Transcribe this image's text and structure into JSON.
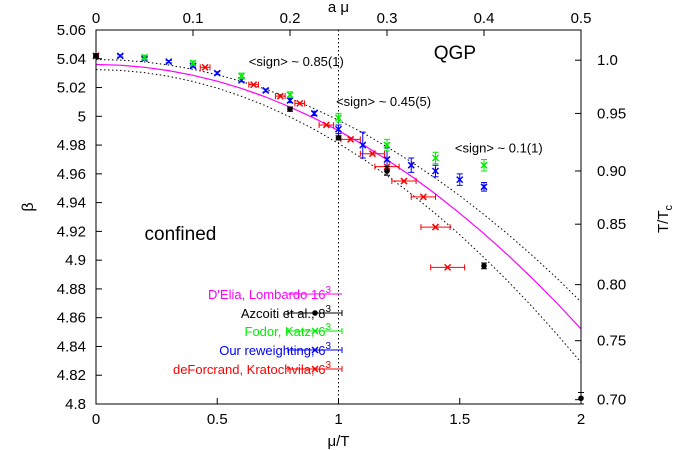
{
  "chart_data": {
    "type": "scatter",
    "xlabel": "μ/T",
    "ylabel": "β",
    "top_xlabel": "a μ",
    "right_ylabel_main": "T/T",
    "right_ylabel_sub": "c",
    "xlim": [
      0,
      2
    ],
    "ylim": [
      4.8,
      5.06
    ],
    "top_xlim": [
      0,
      0.5
    ],
    "xticks": [
      "0",
      "0.5",
      "1",
      "1.5",
      "2"
    ],
    "yticks": [
      "4.8",
      "4.82",
      "4.84",
      "4.86",
      "4.88",
      "4.9",
      "4.92",
      "4.94",
      "4.96",
      "4.98",
      "5",
      "5.02",
      "5.04",
      "5.06"
    ],
    "top_xticks": [
      "0",
      "0.1",
      "0.2",
      "0.3",
      "0.4",
      "0.5"
    ],
    "right_yticks": [
      {
        "label": "0.70",
        "beta": 4.803
      },
      {
        "label": "0.75",
        "beta": 4.844
      },
      {
        "label": "0.80",
        "beta": 4.883
      },
      {
        "label": "0.85",
        "beta": 4.925
      },
      {
        "label": "0.90",
        "beta": 4.962
      },
      {
        "label": "0.95",
        "beta": 5.002
      },
      {
        "label": "1.0",
        "beta": 5.039
      }
    ],
    "vline_x": 1,
    "annotations": [
      {
        "text": "QGP",
        "x": 1.48,
        "y": 5.04,
        "size": 19,
        "anchor": "middle"
      },
      {
        "text": "confined",
        "x": 0.2,
        "y": 4.914,
        "size": 19,
        "anchor": "start"
      },
      {
        "text": "<sign> ~ 0.85(1)",
        "x": 0.63,
        "y": 5.035,
        "size": 13,
        "anchor": "start"
      },
      {
        "text": "<sign> ~ 0.45(5)",
        "x": 0.99,
        "y": 5.007,
        "size": 13,
        "anchor": "start"
      },
      {
        "text": "<sign> ~ 0.1(1)",
        "x": 1.48,
        "y": 4.975,
        "size": 13,
        "anchor": "start"
      }
    ],
    "series": [
      {
        "name": "D'Elia, Lombardo 16",
        "sup": "3",
        "color": "#ff00ff",
        "kind": "curve",
        "x": [
          0,
          0.1,
          0.2,
          0.3,
          0.4,
          0.5,
          0.6,
          0.7,
          0.8,
          0.9,
          1.0,
          1.1,
          1.2,
          1.3,
          1.4,
          1.5,
          1.6,
          1.7,
          1.8,
          1.9,
          2.0
        ],
        "y": [
          5.036,
          5.0355,
          5.0341,
          5.0318,
          5.0285,
          5.0244,
          5.0194,
          5.0134,
          5.0065,
          4.9987,
          4.99,
          4.9804,
          4.9698,
          4.9584,
          4.946,
          4.9326,
          4.9184,
          4.9033,
          4.8872,
          4.8702,
          4.8522
        ],
        "upper": [
          5.0395,
          5.0391,
          5.0378,
          5.0357,
          5.0327,
          5.0289,
          5.0243,
          5.0188,
          5.0125,
          5.0053,
          4.9973,
          4.9885,
          4.9788,
          4.9683,
          4.957,
          4.9448,
          4.9317,
          4.9178,
          4.9031,
          4.8875,
          4.871
        ],
        "lower": [
          5.0325,
          5.0319,
          5.0304,
          5.0278,
          5.0242,
          5.0196,
          5.0139,
          5.0073,
          4.9996,
          4.9909,
          4.9812,
          4.9705,
          4.9588,
          4.946,
          4.9323,
          4.9176,
          4.9018,
          4.8851,
          4.8674,
          4.8486,
          4.8289
        ]
      },
      {
        "name": "Azcoiti et al., 8",
        "sup": "3",
        "color": "#000000",
        "marker": "dot",
        "points": [
          {
            "x": 0,
            "y": 5.042,
            "yerr": 0.0015
          },
          {
            "x": 0.8,
            "y": 5.005,
            "yerr": 0.0015
          },
          {
            "x": 1.0,
            "y": 4.985,
            "yerr": 0.0015
          },
          {
            "x": 1.2,
            "y": 4.962,
            "yerr": 0.003
          },
          {
            "x": 1.6,
            "y": 4.896,
            "yerr": 0.002
          },
          {
            "x": 2.0,
            "y": 4.804,
            "yerr": 0.004
          }
        ]
      },
      {
        "name": "Fodor, Katz, 6",
        "sup": "3",
        "color": "#00ee00",
        "marker": "x",
        "points": [
          {
            "x": 0,
            "y": 5.042,
            "yerr": 0.001
          },
          {
            "x": 0.2,
            "y": 5.041,
            "yerr": 0.0015
          },
          {
            "x": 0.4,
            "y": 5.037,
            "yerr": 0.0015
          },
          {
            "x": 0.6,
            "y": 5.028,
            "yerr": 0.002
          },
          {
            "x": 0.8,
            "y": 5.015,
            "yerr": 0.002
          },
          {
            "x": 1.0,
            "y": 4.999,
            "yerr": 0.003
          },
          {
            "x": 1.2,
            "y": 4.98,
            "yerr": 0.004
          },
          {
            "x": 1.4,
            "y": 4.971,
            "yerr": 0.004
          },
          {
            "x": 1.6,
            "y": 4.966,
            "yerr": 0.004
          }
        ]
      },
      {
        "name": "Our reweighting, 6",
        "sup": "3",
        "color": "#0000ff",
        "marker": "x",
        "points": [
          {
            "x": 0,
            "y": 5.042,
            "yerr": 0.0008
          },
          {
            "x": 0.1,
            "y": 5.042,
            "yerr": 0.0008
          },
          {
            "x": 0.2,
            "y": 5.04,
            "yerr": 0.0008
          },
          {
            "x": 0.3,
            "y": 5.038,
            "yerr": 0.0008
          },
          {
            "x": 0.4,
            "y": 5.035,
            "yerr": 0.0008
          },
          {
            "x": 0.5,
            "y": 5.03,
            "yerr": 0.001
          },
          {
            "x": 0.6,
            "y": 5.025,
            "yerr": 0.001
          },
          {
            "x": 0.7,
            "y": 5.018,
            "yerr": 0.001
          },
          {
            "x": 0.8,
            "y": 5.011,
            "yerr": 0.0015
          },
          {
            "x": 0.9,
            "y": 5.002,
            "yerr": 0.0015
          },
          {
            "x": 1.0,
            "y": 4.991,
            "yerr": 0.003
          },
          {
            "x": 1.1,
            "y": 4.98,
            "yerr": 0.009
          },
          {
            "x": 1.2,
            "y": 4.97,
            "yerr": 0.008
          },
          {
            "x": 1.3,
            "y": 4.966,
            "yerr": 0.005
          },
          {
            "x": 1.4,
            "y": 4.962,
            "yerr": 0.004
          },
          {
            "x": 1.5,
            "y": 4.956,
            "yerr": 0.004
          },
          {
            "x": 1.6,
            "y": 4.951,
            "yerr": 0.003
          }
        ]
      },
      {
        "name": "deForcrand, Kratochvila, 6",
        "sup": "3",
        "color": "#ff0000",
        "marker": "x",
        "points": [
          {
            "x": 0,
            "y": 5.042,
            "xerr": 0.01
          },
          {
            "x": 0.45,
            "y": 5.034,
            "xerr": 0.02
          },
          {
            "x": 0.65,
            "y": 5.022,
            "xerr": 0.02
          },
          {
            "x": 0.76,
            "y": 5.014,
            "xerr": 0.02
          },
          {
            "x": 0.84,
            "y": 5.009,
            "xerr": 0.02
          },
          {
            "x": 0.95,
            "y": 4.994,
            "xerr": 0.03
          },
          {
            "x": 1.05,
            "y": 4.984,
            "xerr": 0.04
          },
          {
            "x": 1.14,
            "y": 4.974,
            "xerr": 0.05
          },
          {
            "x": 1.2,
            "y": 4.965,
            "xerr": 0.05
          },
          {
            "x": 1.27,
            "y": 4.955,
            "xerr": 0.05
          },
          {
            "x": 1.35,
            "y": 4.944,
            "xerr": 0.05
          },
          {
            "x": 1.4,
            "y": 4.923,
            "xerr": 0.06
          },
          {
            "x": 1.45,
            "y": 4.895,
            "xerr": 0.07
          }
        ]
      }
    ]
  }
}
